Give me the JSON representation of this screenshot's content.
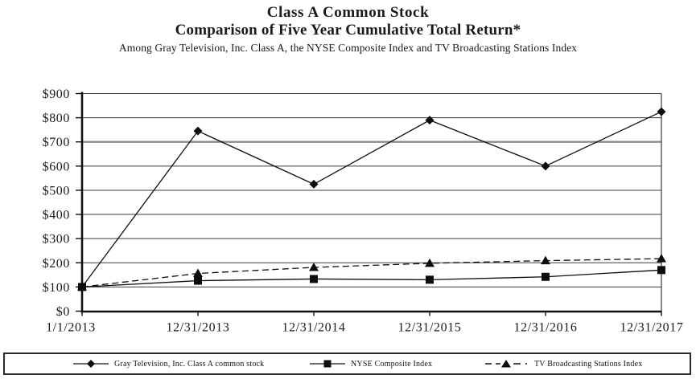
{
  "header": {
    "title_line1": "Class A Common Stock",
    "title_line2": "Comparison of Five Year Cumulative Total Return*",
    "subtitle": "Among Gray Television, Inc. Class A, the NYSE Composite Index and TV Broadcasting Stations Index"
  },
  "chart_data": {
    "type": "line",
    "title": "Class A Common Stock — Comparison of Five Year Cumulative Total Return*",
    "xlabel": "",
    "ylabel": "",
    "categories": [
      "1/1/2013",
      "12/31/2013",
      "12/31/2014",
      "12/31/2015",
      "12/31/2016",
      "12/31/2017"
    ],
    "series": [
      {
        "name": "Gray Television, Inc. Class A common stock",
        "marker": "diamond",
        "line": "solid",
        "values": [
          100,
          745,
          525,
          790,
          600,
          825
        ]
      },
      {
        "name": "NYSE Composite Index",
        "marker": "square",
        "line": "solid",
        "values": [
          100,
          126,
          133,
          130,
          142,
          170
        ]
      },
      {
        "name": "TV Broadcasting Stations Index",
        "marker": "triangle",
        "line": "dashed",
        "values": [
          100,
          156,
          181,
          198,
          209,
          217
        ]
      }
    ],
    "y_ticks": [
      "$0",
      "$100",
      "$200",
      "$300",
      "$400",
      "$500",
      "$600",
      "$700",
      "$800",
      "$900"
    ],
    "ylim": [
      0,
      900
    ],
    "grid": true,
    "legend_position": "bottom",
    "colors": {
      "series": "#0d0d0d",
      "gridline": "#3c3c3c",
      "gridline_700": "#8c8c8c",
      "axis": "#111111",
      "text": "#1a1a1a"
    }
  }
}
